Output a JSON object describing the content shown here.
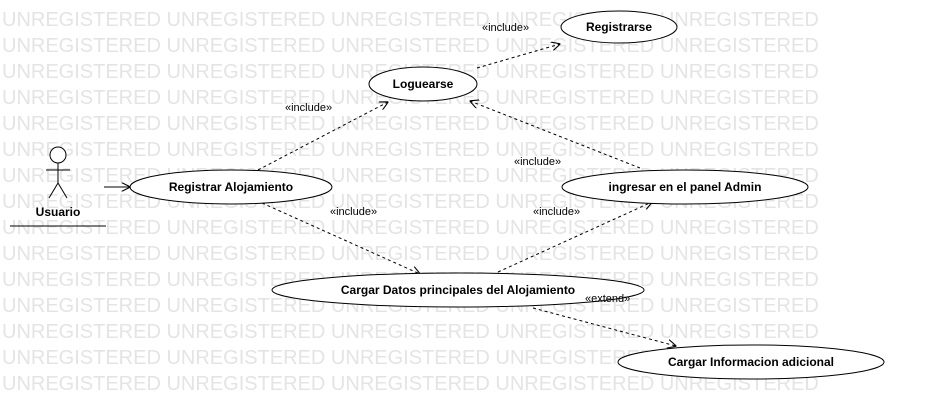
{
  "watermark": "UNREGISTERED UNREGISTERED UNREGISTERED UNREGISTERED UNREGISTERED",
  "actor": {
    "label": "Usuario"
  },
  "use_cases": {
    "registrarse": "Registrarse",
    "loguearse": "Loguearse",
    "registrar_alojamiento": "Registrar Alojamiento",
    "panel_admin": "ingresar en el panel Admin",
    "cargar_datos": "Cargar Datos principales del Alojamiento",
    "cargar_info": "Cargar Informacion adicional"
  },
  "relations": {
    "include_login_registrarse": "«include»",
    "include_registrar_login": "«include»",
    "include_admin_login": "«include»",
    "include_registrar_cargar": "«include»",
    "include_cargar_admin": "«include»",
    "extend_cargar_info": "«extend»"
  }
}
